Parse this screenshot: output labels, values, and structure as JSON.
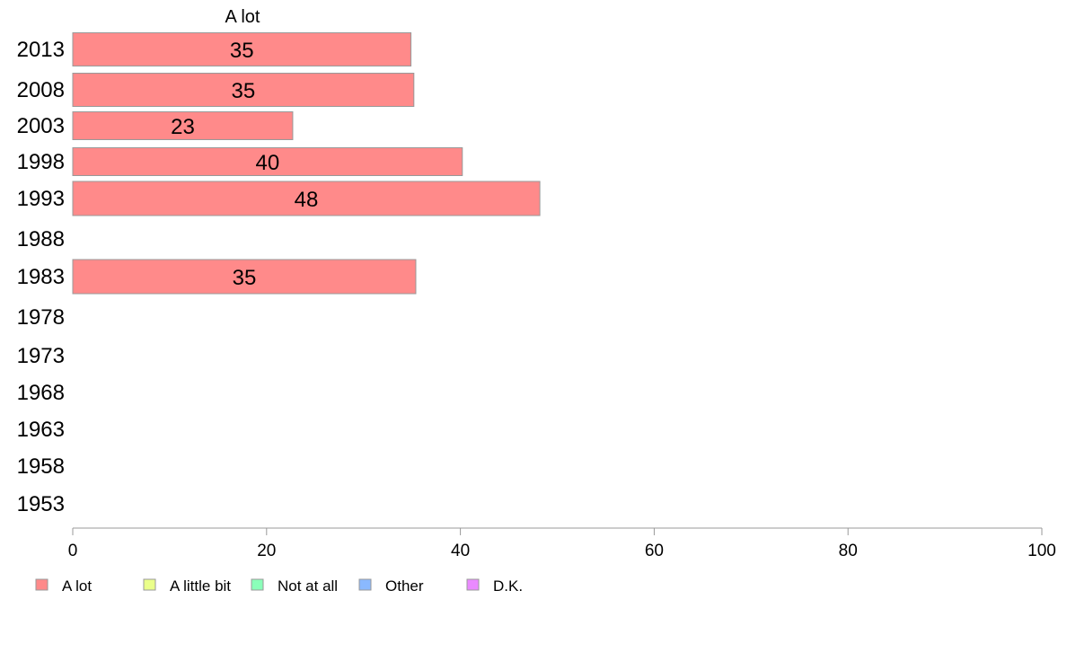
{
  "chart_data": {
    "type": "bar",
    "orientation": "horizontal",
    "stacked": true,
    "title": "",
    "xlabel": "",
    "ylabel": "",
    "xlim": [
      0,
      100
    ],
    "xticks": [
      0,
      20,
      40,
      60,
      80,
      100
    ],
    "grid": false,
    "legend_position": "bottom-left",
    "categories": [
      "2013",
      "2008",
      "2003",
      "1998",
      "1993",
      "1988",
      "1983",
      "1978",
      "1973",
      "1968",
      "1963",
      "1958",
      "1953"
    ],
    "series": [
      {
        "name": "A lot",
        "color": "#ff8a8a",
        "values": [
          34.9,
          35.2,
          22.7,
          40.2,
          48.2,
          null,
          35.4,
          null,
          null,
          null,
          null,
          null,
          null
        ],
        "labels": [
          "35",
          "35",
          "23",
          "40",
          "48",
          "",
          "35",
          "",
          "",
          "",
          "",
          "",
          ""
        ]
      },
      {
        "name": "A little bit",
        "color": "#eaff8a",
        "values": [
          null,
          null,
          null,
          null,
          null,
          null,
          null,
          null,
          null,
          null,
          null,
          null,
          null
        ]
      },
      {
        "name": "Not at all",
        "color": "#8affb9",
        "values": [
          null,
          null,
          null,
          null,
          null,
          null,
          null,
          null,
          null,
          null,
          null,
          null,
          null
        ]
      },
      {
        "name": "Other",
        "color": "#8ab9ff",
        "values": [
          null,
          null,
          null,
          null,
          null,
          null,
          null,
          null,
          null,
          null,
          null,
          null,
          null
        ]
      },
      {
        "name": "D.K.",
        "color": "#ea8aff",
        "values": [
          null,
          null,
          null,
          null,
          null,
          null,
          null,
          null,
          null,
          null,
          null,
          null,
          null
        ]
      }
    ],
    "series_title": "A lot",
    "axis_color": "#999999",
    "bar_border_color": "#999999"
  }
}
